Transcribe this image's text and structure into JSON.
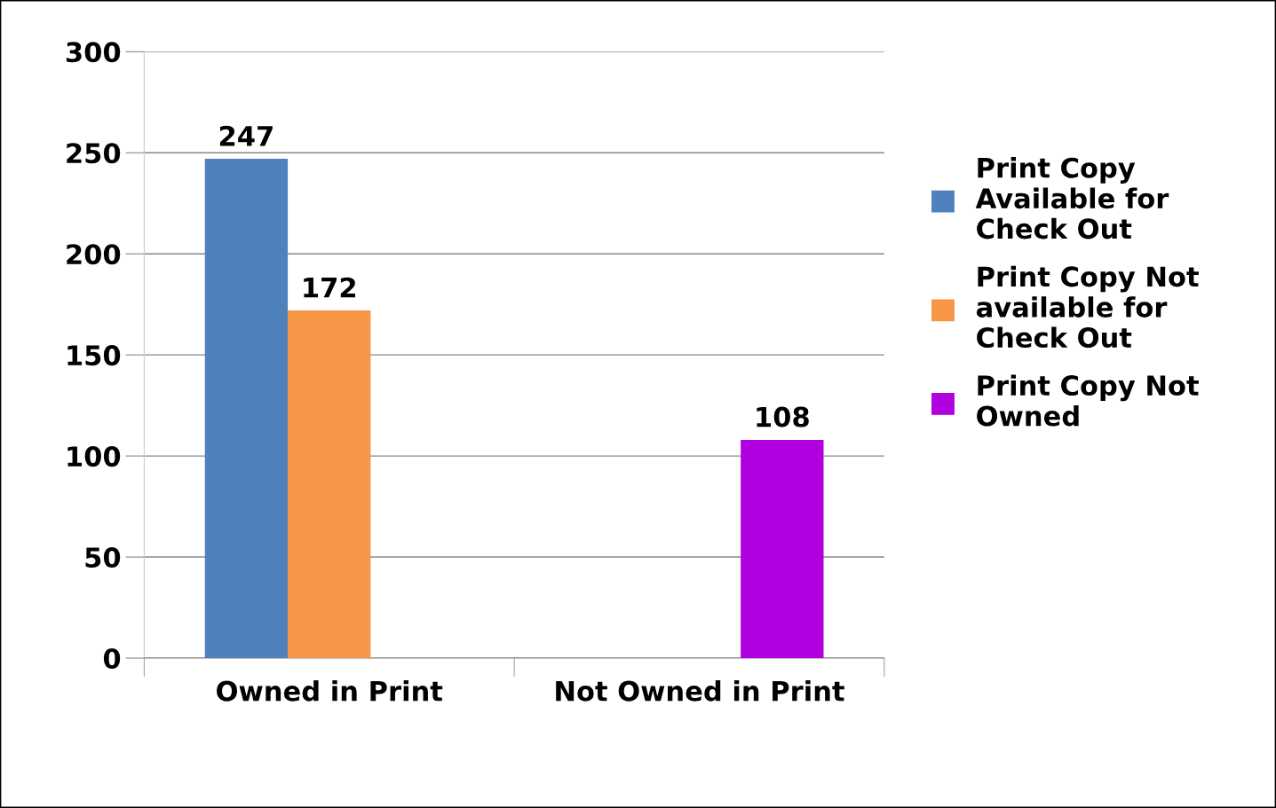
{
  "chart_data": {
    "type": "bar",
    "categories": [
      "Owned in Print",
      "Not Owned in Print"
    ],
    "series": [
      {
        "name": "Print Copy Available for Check Out",
        "color": "#4f81bd",
        "values": [
          247,
          null
        ]
      },
      {
        "name": "Print Copy Not available for Check Out",
        "color": "#f79646",
        "values": [
          172,
          null
        ]
      },
      {
        "name": "Print Copy Not Owned",
        "color": "#b000e0",
        "values": [
          null,
          108
        ]
      }
    ],
    "ylim": [
      0,
      300
    ],
    "yticks": [
      0,
      50,
      100,
      150,
      200,
      250,
      300
    ],
    "grid": "y",
    "legend": "right",
    "data_labels": true
  }
}
